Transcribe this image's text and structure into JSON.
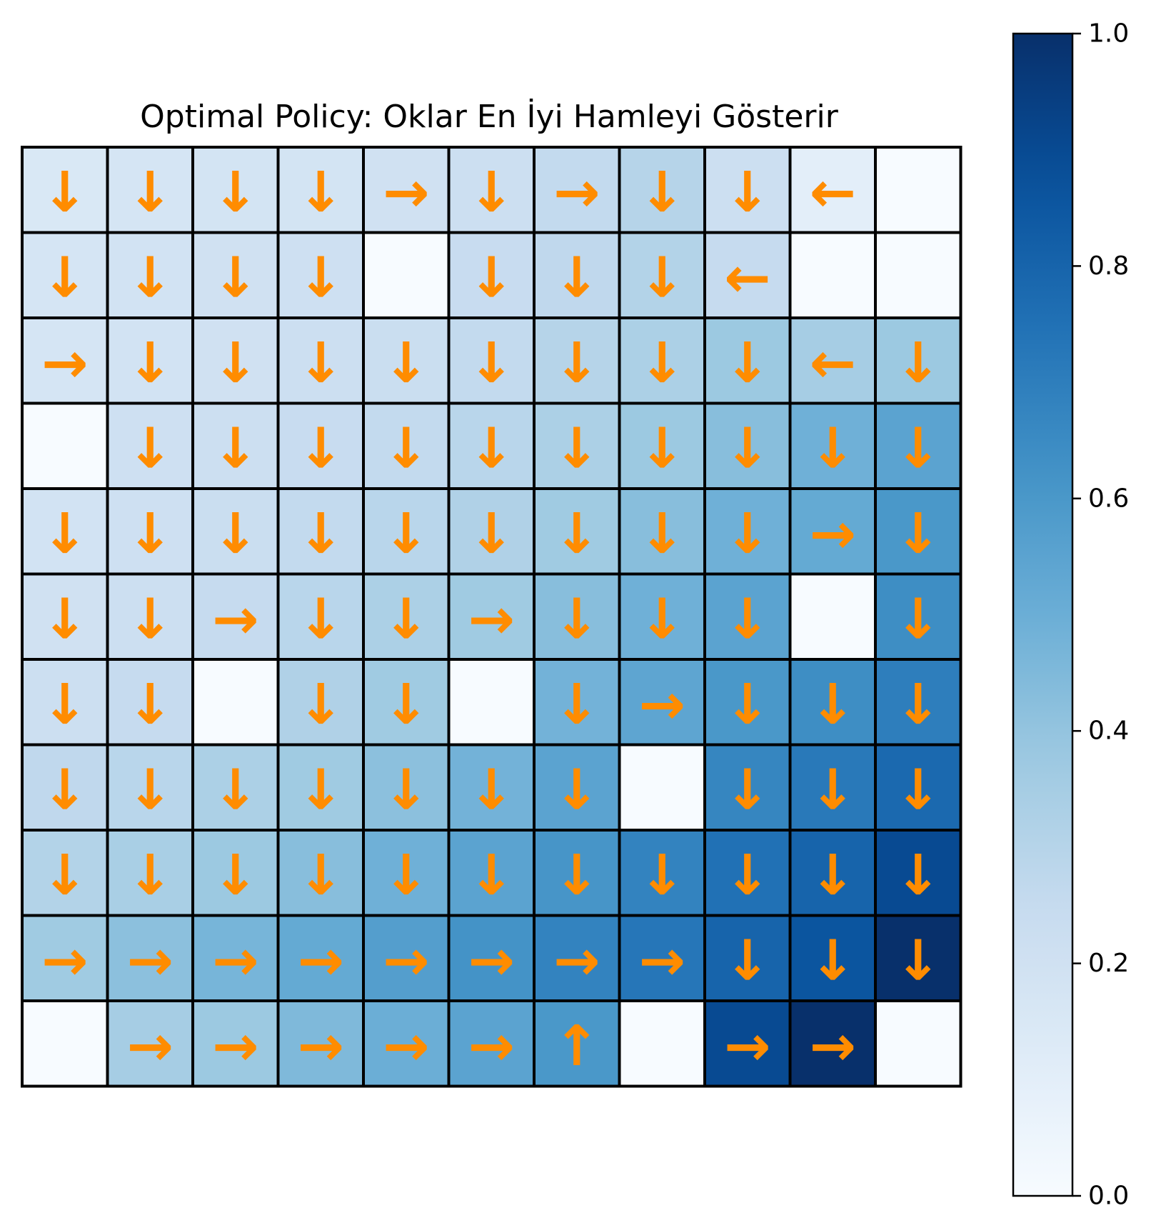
{
  "chart_data": {
    "type": "heatmap",
    "title": "Optimal Policy: Oklar En İyi Hamleyi Gösterir",
    "rows": 11,
    "cols": 11,
    "colormap": "Blues",
    "arrow_color": "#ff8c00",
    "grid_color": "#000000",
    "values": [
      [
        0.15,
        0.17,
        0.18,
        0.18,
        0.2,
        0.22,
        0.26,
        0.3,
        0.22,
        0.1,
        0.0
      ],
      [
        0.17,
        0.19,
        0.2,
        0.21,
        0.0,
        0.24,
        0.27,
        0.31,
        0.25,
        0.0,
        0.0
      ],
      [
        0.17,
        0.19,
        0.2,
        0.22,
        0.23,
        0.26,
        0.3,
        0.33,
        0.38,
        0.35,
        0.38
      ],
      [
        0.0,
        0.21,
        0.22,
        0.24,
        0.26,
        0.29,
        0.33,
        0.38,
        0.43,
        0.49,
        0.55
      ],
      [
        0.19,
        0.21,
        0.23,
        0.26,
        0.29,
        0.32,
        0.37,
        0.43,
        0.49,
        0.52,
        0.6
      ],
      [
        0.2,
        0.22,
        0.25,
        0.29,
        0.33,
        0.37,
        0.43,
        0.49,
        0.55,
        0.0,
        0.64
      ],
      [
        0.22,
        0.25,
        0.0,
        0.32,
        0.37,
        0.0,
        0.48,
        0.54,
        0.6,
        0.64,
        0.7
      ],
      [
        0.27,
        0.29,
        0.33,
        0.37,
        0.42,
        0.48,
        0.55,
        0.0,
        0.67,
        0.72,
        0.78
      ],
      [
        0.31,
        0.34,
        0.38,
        0.43,
        0.49,
        0.55,
        0.61,
        0.68,
        0.75,
        0.8,
        0.9
      ],
      [
        0.37,
        0.42,
        0.47,
        0.52,
        0.57,
        0.62,
        0.68,
        0.73,
        0.8,
        0.86,
        1.0
      ],
      [
        0.0,
        0.35,
        0.38,
        0.45,
        0.5,
        0.55,
        0.6,
        0.0,
        0.9,
        1.0,
        0.0
      ]
    ],
    "arrows": [
      [
        "↓",
        "↓",
        "↓",
        "↓",
        "→",
        "↓",
        "→",
        "↓",
        "↓",
        "←",
        ""
      ],
      [
        "↓",
        "↓",
        "↓",
        "↓",
        "",
        "↓",
        "↓",
        "↓",
        "←",
        "",
        ""
      ],
      [
        "→",
        "↓",
        "↓",
        "↓",
        "↓",
        "↓",
        "↓",
        "↓",
        "↓",
        "←",
        "↓"
      ],
      [
        "",
        "↓",
        "↓",
        "↓",
        "↓",
        "↓",
        "↓",
        "↓",
        "↓",
        "↓",
        "↓"
      ],
      [
        "↓",
        "↓",
        "↓",
        "↓",
        "↓",
        "↓",
        "↓",
        "↓",
        "↓",
        "→",
        "↓"
      ],
      [
        "↓",
        "↓",
        "→",
        "↓",
        "↓",
        "→",
        "↓",
        "↓",
        "↓",
        "",
        "↓"
      ],
      [
        "↓",
        "↓",
        "",
        "↓",
        "↓",
        "",
        "↓",
        "→",
        "↓",
        "↓",
        "↓"
      ],
      [
        "↓",
        "↓",
        "↓",
        "↓",
        "↓",
        "↓",
        "↓",
        "",
        "↓",
        "↓",
        "↓"
      ],
      [
        "↓",
        "↓",
        "↓",
        "↓",
        "↓",
        "↓",
        "↓",
        "↓",
        "↓",
        "↓",
        "↓"
      ],
      [
        "→",
        "→",
        "→",
        "→",
        "→",
        "→",
        "→",
        "→",
        "↓",
        "↓",
        "↓"
      ],
      [
        "",
        "→",
        "→",
        "→",
        "→",
        "→",
        "↑",
        "",
        "→",
        "→",
        ""
      ]
    ],
    "colorbar": {
      "vmin": 0.0,
      "vmax": 1.0,
      "ticks": [
        "0.0",
        "0.2",
        "0.4",
        "0.6",
        "0.8",
        "1.0"
      ]
    }
  }
}
